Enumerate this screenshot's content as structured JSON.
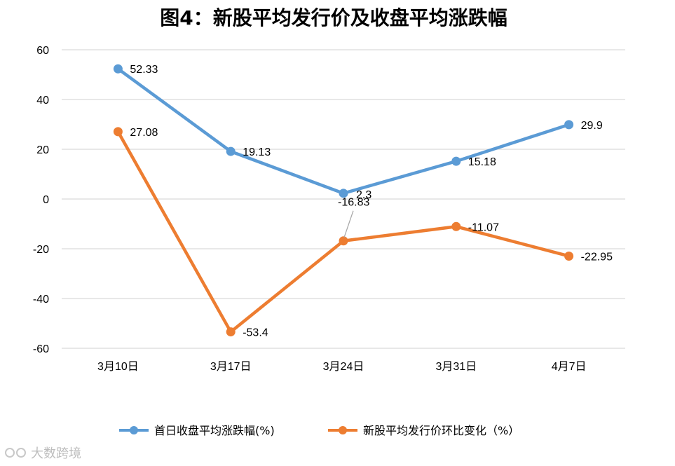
{
  "chart_data": {
    "type": "line",
    "title": "图4：新股平均发行价及收盘平均涨跌幅",
    "categories": [
      "3月10日",
      "3月17日",
      "3月24日",
      "3月31日",
      "4月7日"
    ],
    "ylim": [
      -60,
      60
    ],
    "yticks": [
      "60",
      "40",
      "20",
      "0",
      "-20",
      "-40",
      "-60"
    ],
    "ytick_values": [
      60,
      40,
      20,
      0,
      -20,
      -40,
      -60
    ],
    "grid": true,
    "legend_position": "bottom",
    "series": [
      {
        "name": "首日收盘平均涨跌幅(%)",
        "color": "#5b9bd5",
        "values": [
          52.33,
          19.13,
          2.3,
          15.18,
          29.9
        ],
        "labels": [
          "52.33",
          "19.13",
          "2.3",
          "15.18",
          "29.9"
        ]
      },
      {
        "name": "新股平均发行价环比变化（%）",
        "color": "#ed7d31",
        "values": [
          27.08,
          -53.4,
          -16.83,
          -11.07,
          -22.95
        ],
        "labels": [
          "27.08",
          "-53.4",
          "-16.83",
          "-11.07",
          "-22.95"
        ]
      }
    ]
  },
  "watermark": "大数跨境"
}
